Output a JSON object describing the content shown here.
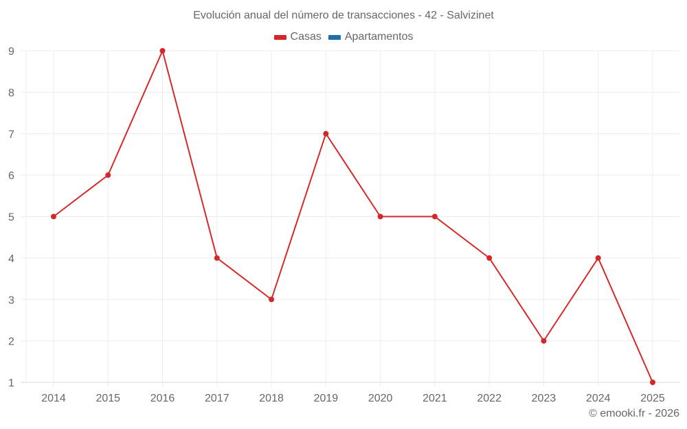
{
  "chart_data": {
    "type": "line",
    "title": "Evolución anual del número de transacciones - 42 - Salvizinet",
    "xlabel": "",
    "ylabel": "",
    "categories": [
      "2014",
      "2015",
      "2016",
      "2017",
      "2018",
      "2019",
      "2020",
      "2021",
      "2022",
      "2023",
      "2024",
      "2025"
    ],
    "series": [
      {
        "name": "Casas",
        "color": "#d62728",
        "values": [
          5,
          6,
          9,
          4,
          3,
          7,
          5,
          5,
          4,
          2,
          4,
          1
        ]
      },
      {
        "name": "Apartamentos",
        "color": "#1f6fa8",
        "values": []
      }
    ],
    "yticks": [
      1,
      2,
      3,
      4,
      5,
      6,
      7,
      8,
      9
    ],
    "ylim": [
      1,
      9
    ],
    "grid": true,
    "legend_position": "top"
  },
  "credit": "© emooki.fr - 2026"
}
